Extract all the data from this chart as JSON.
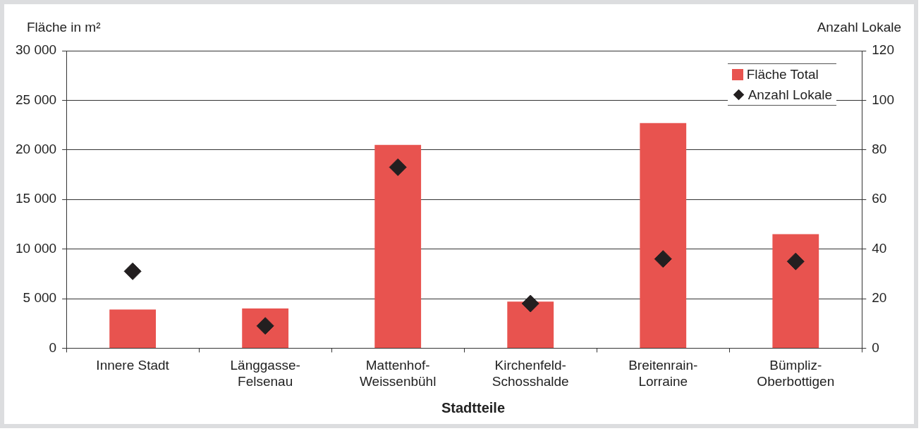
{
  "chart_data": {
    "type": "bar",
    "xlabel": "Stadtteile",
    "ylabel": "Fläche in m²",
    "y2label": "Anzahl Lokale",
    "categories": [
      "Innere Stadt",
      "Länggasse-Felsenau",
      "Mattenhof-Weissenbühl",
      "Kirchenfeld-Schosshalde",
      "Breitenrain-Lorraine",
      "Bümpliz-Oberbottigen"
    ],
    "series": [
      {
        "name": "Fläche Total",
        "color": "#e8534f",
        "values": [
          3900,
          4000,
          20500,
          4700,
          22700,
          11500
        ]
      },
      {
        "name": "Anzahl Lokale",
        "type": "scatter",
        "axis": "y2",
        "color": "#231f20",
        "marker": "diamond",
        "values": [
          31,
          9,
          73,
          18,
          36,
          35
        ]
      }
    ],
    "ylim": [
      0,
      30000
    ],
    "yticks": [
      {
        "value": 0,
        "label": "0"
      },
      {
        "value": 5000,
        "label": "5 000"
      },
      {
        "value": 10000,
        "label": "10 000"
      },
      {
        "value": 15000,
        "label": "15 000"
      },
      {
        "value": 20000,
        "label": "20 000"
      },
      {
        "value": 25000,
        "label": "25 000"
      },
      {
        "value": 30000,
        "label": "30 000"
      }
    ],
    "y2lim": [
      0,
      120
    ],
    "y2ticks": [
      0,
      20,
      40,
      60,
      80,
      100,
      120
    ],
    "grid": "y",
    "legend": "top right"
  }
}
